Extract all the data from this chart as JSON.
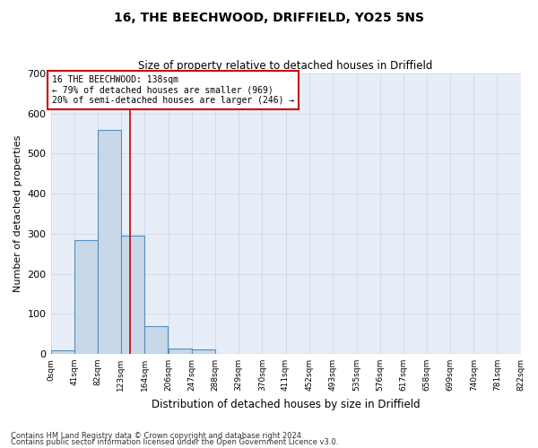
{
  "title1": "16, THE BEECHWOOD, DRIFFIELD, YO25 5NS",
  "title2": "Size of property relative to detached houses in Driffield",
  "xlabel": "Distribution of detached houses by size in Driffield",
  "ylabel": "Number of detached properties",
  "bin_edges": [
    0,
    41,
    82,
    123,
    164,
    206,
    247,
    288,
    329,
    370,
    411,
    452,
    493,
    535,
    576,
    617,
    658,
    699,
    740,
    781,
    822
  ],
  "bar_heights": [
    8,
    285,
    560,
    295,
    70,
    14,
    10,
    0,
    0,
    0,
    0,
    0,
    0,
    0,
    0,
    0,
    0,
    0,
    0,
    0
  ],
  "bar_color": "#c8d8e8",
  "bar_edge_color": "#5090c0",
  "bar_linewidth": 0.8,
  "vline_x": 138,
  "vline_color": "#cc0000",
  "vline_linewidth": 1.2,
  "annotation_text": "16 THE BEECHWOOD: 138sqm\n← 79% of detached houses are smaller (969)\n20% of semi-detached houses are larger (246) →",
  "annotation_box_color": "#ffffff",
  "annotation_box_edge_color": "#cc0000",
  "ylim": [
    0,
    700
  ],
  "xlim": [
    0,
    822
  ],
  "yticks": [
    0,
    100,
    200,
    300,
    400,
    500,
    600,
    700
  ],
  "xtick_labels": [
    "0sqm",
    "41sqm",
    "82sqm",
    "123sqm",
    "164sqm",
    "206sqm",
    "247sqm",
    "288sqm",
    "329sqm",
    "370sqm",
    "411sqm",
    "452sqm",
    "493sqm",
    "535sqm",
    "576sqm",
    "617sqm",
    "658sqm",
    "699sqm",
    "740sqm",
    "781sqm",
    "822sqm"
  ],
  "grid_color": "#d0d8e8",
  "background_color": "#e8eef8",
  "footnote1": "Contains HM Land Registry data © Crown copyright and database right 2024.",
  "footnote2": "Contains public sector information licensed under the Open Government Licence v3.0."
}
